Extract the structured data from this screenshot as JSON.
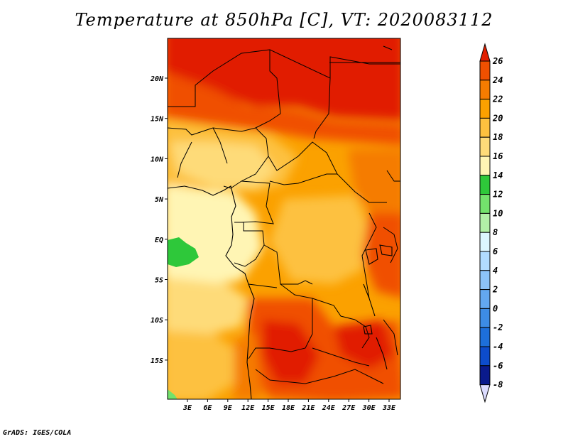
{
  "title": "Temperature at 850hPa [C], VT: 2020083112",
  "credit": "GrADS: IGES/COLA",
  "map": {
    "lon_labels": [
      "3E",
      "6E",
      "9E",
      "12E",
      "15E",
      "18E",
      "21E",
      "24E",
      "27E",
      "30E",
      "33E"
    ],
    "lat_labels": [
      "20N",
      "15N",
      "10N",
      "5N",
      "EQ",
      "5S",
      "10S",
      "15S"
    ]
  },
  "colorbar": {
    "labels": [
      "26",
      "24",
      "22",
      "20",
      "18",
      "16",
      "14",
      "12",
      "10",
      "8",
      "6",
      "4",
      "2",
      "0",
      "-2",
      "-4",
      "-6",
      "-8"
    ],
    "colors": [
      "#e11f00",
      "#f05000",
      "#f57c00",
      "#fba100",
      "#fdc13f",
      "#fedb79",
      "#fff5b4",
      "#2ec83a",
      "#73e26c",
      "#b2f0a7",
      "#dcf6ff",
      "#b1dcff",
      "#8cc3f8",
      "#63a8f0",
      "#3d8ce5",
      "#1d6fdb",
      "#0d4ccc",
      "#0a1a8c"
    ]
  }
}
